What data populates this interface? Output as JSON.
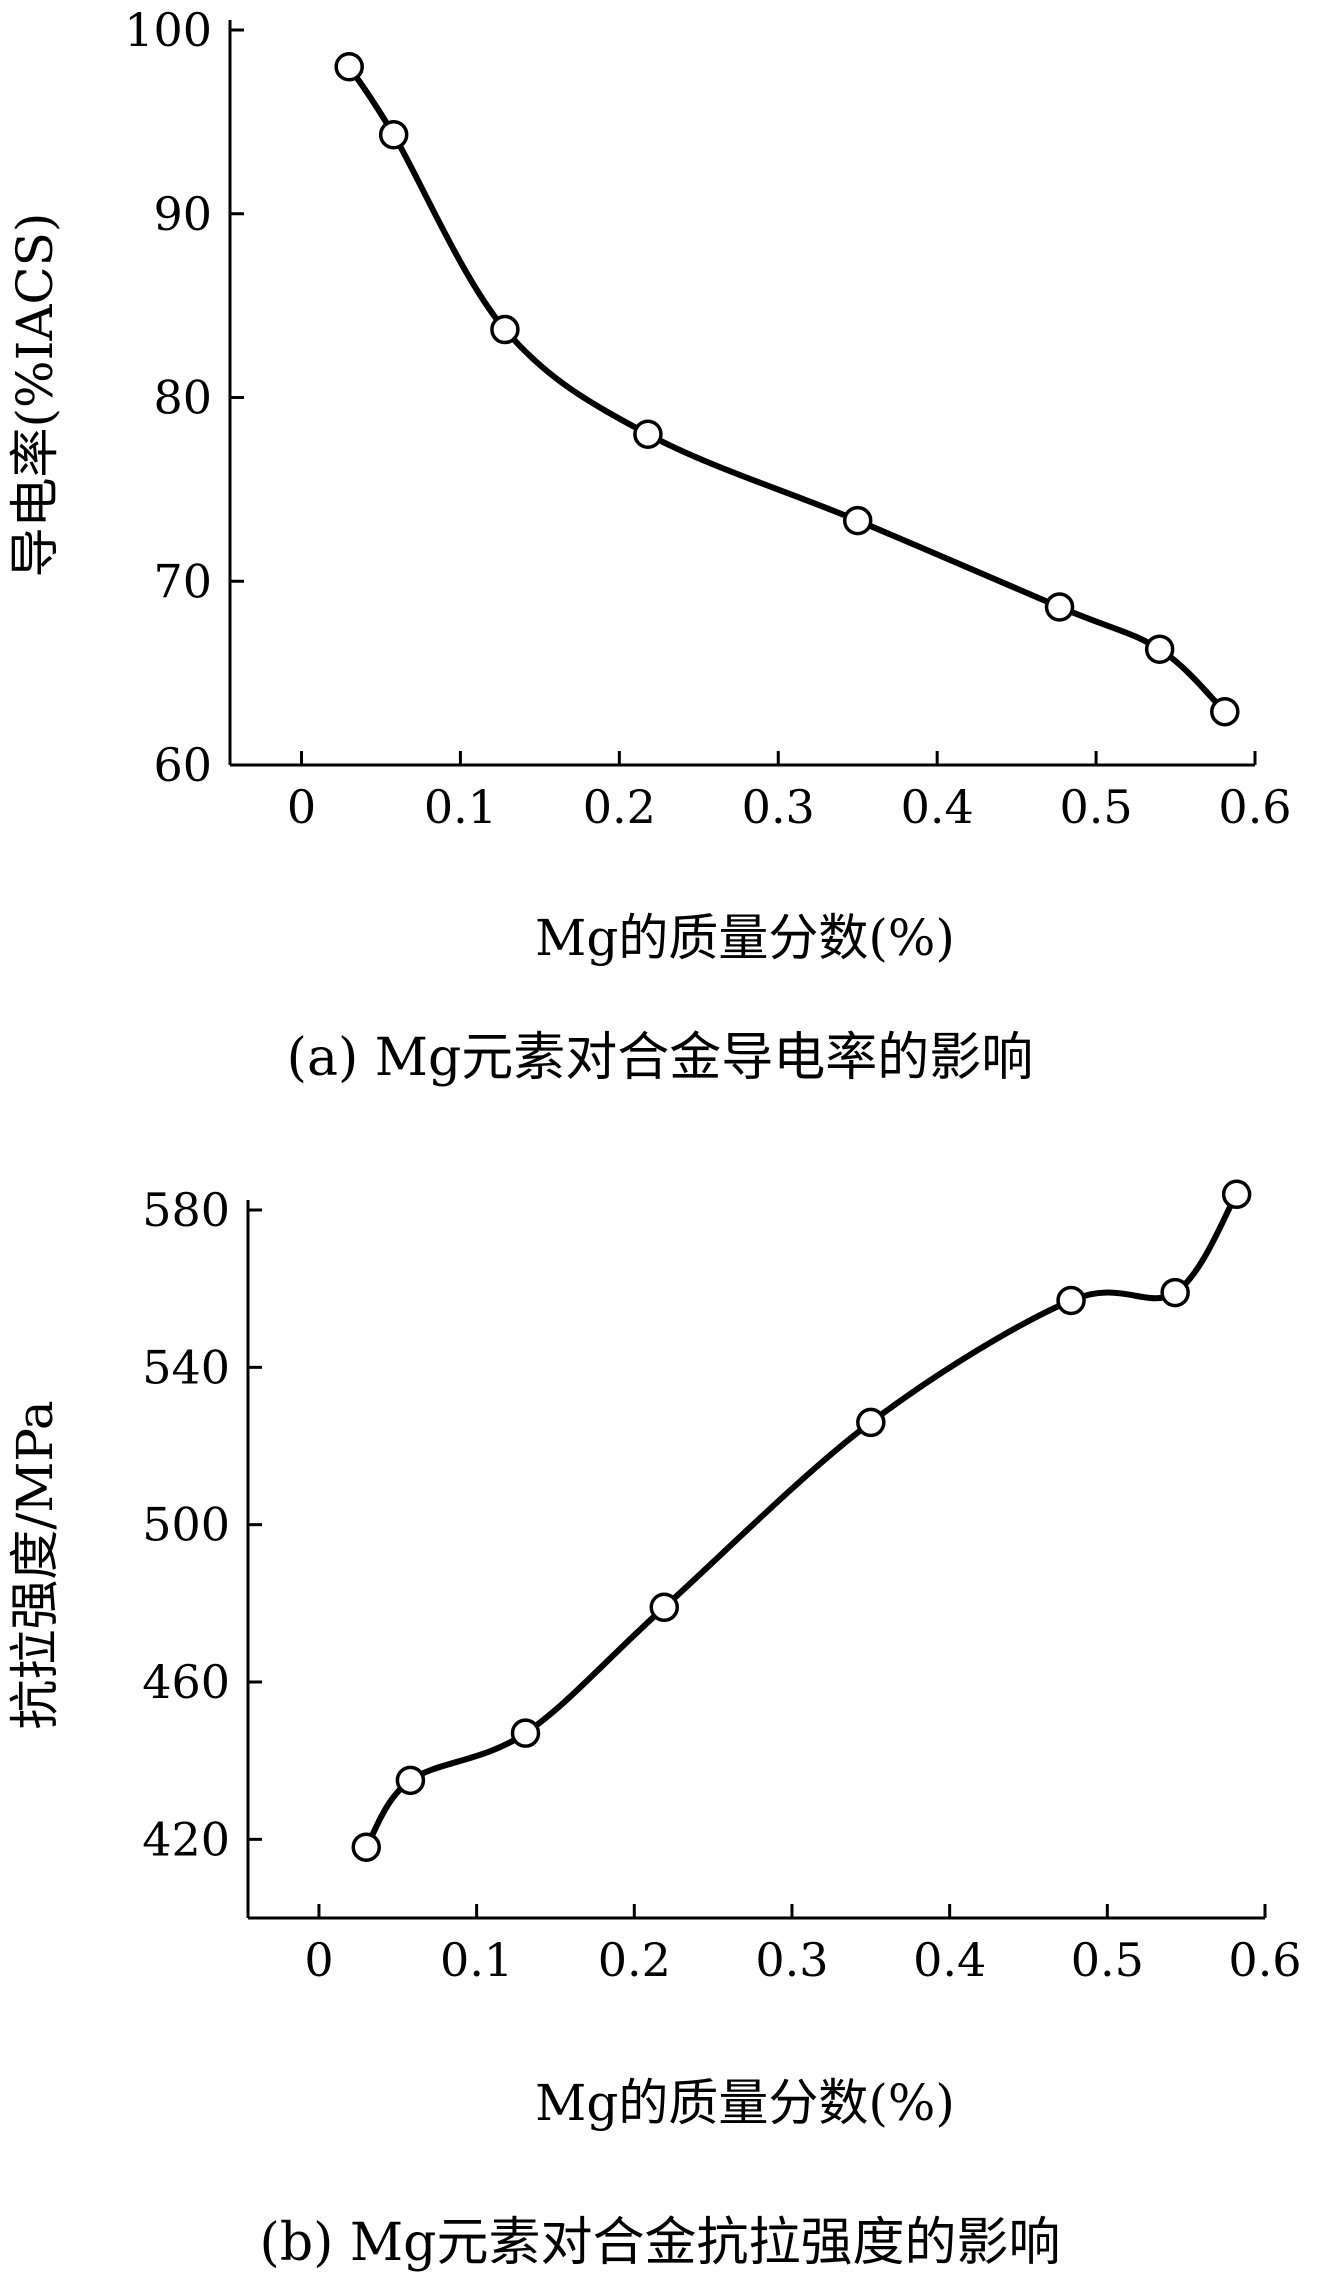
{
  "chart_data": [
    {
      "type": "line",
      "caption": "(a) Mg元素对合金导电率的影响",
      "xlabel": "Mg的质量分数(%)",
      "ylabel": "导电率(%IACS)",
      "xlim": [
        -0.045,
        0.6
      ],
      "ylim": [
        60,
        100
      ],
      "x_ticks": [
        0,
        0.1,
        0.2,
        0.3,
        0.4,
        0.5,
        0.6
      ],
      "x_tick_labels": [
        "0",
        "0.1",
        "0.2",
        "0.3",
        "0.4",
        "0.5",
        "0.6"
      ],
      "y_ticks": [
        60,
        70,
        80,
        90,
        100
      ],
      "y_tick_labels": [
        "60",
        "70",
        "80",
        "90",
        "100"
      ],
      "grid": false,
      "series": [
        {
          "marker": "open-circle",
          "x": [
            0.03,
            0.058,
            0.128,
            0.218,
            0.35,
            0.477,
            0.54,
            0.581
          ],
          "y": [
            98.0,
            94.3,
            83.7,
            78.0,
            73.3,
            68.6,
            66.3,
            62.9
          ]
        }
      ]
    },
    {
      "type": "line",
      "caption": "(b) Mg元素对合金抗拉强度的影响",
      "xlabel": "Mg的质量分数(%)",
      "ylabel": "抗拉强度/MPa",
      "xlim": [
        -0.045,
        0.6
      ],
      "ylim": [
        400,
        580
      ],
      "x_ticks": [
        0,
        0.1,
        0.2,
        0.3,
        0.4,
        0.5,
        0.6
      ],
      "x_tick_labels": [
        "0",
        "0.1",
        "0.2",
        "0.3",
        "0.4",
        "0.5",
        "0.6"
      ],
      "y_ticks": [
        420,
        460,
        500,
        540,
        580
      ],
      "y_tick_labels": [
        "420",
        "460",
        "500",
        "540",
        "580"
      ],
      "grid": false,
      "series": [
        {
          "marker": "open-circle",
          "x": [
            0.03,
            0.058,
            0.131,
            0.219,
            0.35,
            0.477,
            0.543,
            0.582
          ],
          "y": [
            418,
            435,
            447,
            479,
            526,
            557,
            559,
            584
          ]
        }
      ]
    }
  ]
}
